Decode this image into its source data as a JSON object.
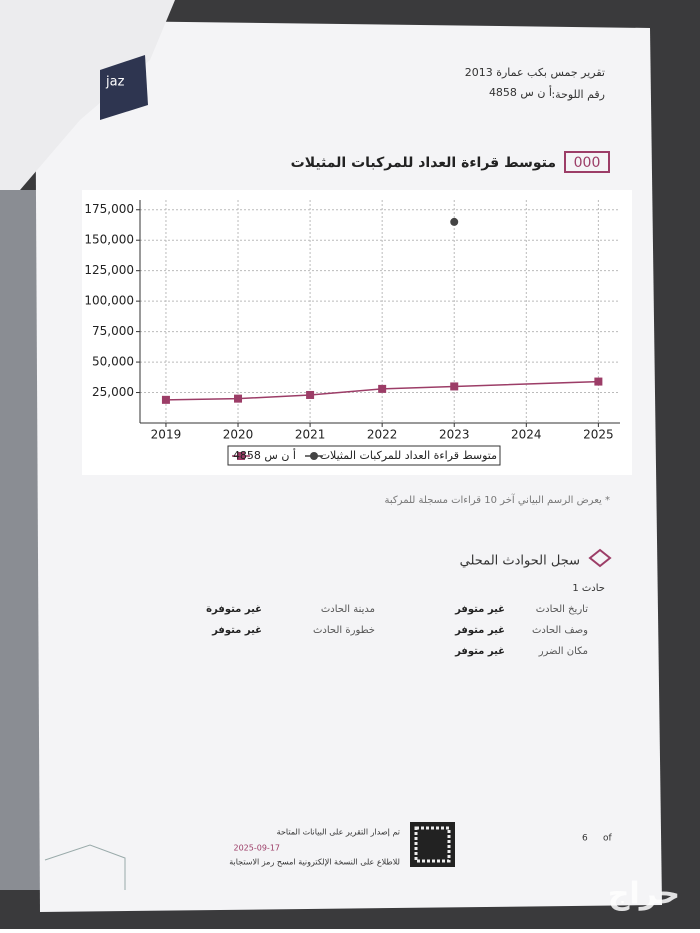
{
  "header": {
    "report_title": "تقرير جمس بكب عمارة 2013",
    "plate_label": "رقم اللوحة:",
    "plate": "أ ن س 4858",
    "logo": "jaz"
  },
  "section": {
    "icon": "000"
  },
  "chart_data": {
    "type": "line",
    "title": "متوسط قراءة العداد للمركبات المثيلات",
    "series": [
      {
        "name": "أ ن س 4858",
        "color": "#9c3d67",
        "marker": "square",
        "x": [
          2019,
          2020,
          2021,
          2022,
          2023,
          2025
        ],
        "values": [
          19000,
          20000,
          23000,
          28000,
          30000,
          34000
        ]
      },
      {
        "name": "متوسط قراءة العداد للمركبات المثيلات",
        "color": "#444444",
        "marker": "circle",
        "x": [
          2023
        ],
        "values": [
          165000
        ]
      }
    ],
    "xlim": [
      2018.64,
      2025.3
    ],
    "xticks": [
      2019,
      2020,
      2021,
      2022,
      2023,
      2024,
      2025
    ],
    "ylim": [
      0,
      183000
    ],
    "yticks": [
      {
        "value": 25000,
        "label": "25,000"
      },
      {
        "value": 50000,
        "label": "50,000"
      },
      {
        "value": 75000,
        "label": "75,000"
      },
      {
        "value": 100000,
        "label": "100,000"
      },
      {
        "value": 125000,
        "label": "125,000"
      },
      {
        "value": 150000,
        "label": "150,000"
      },
      {
        "value": 175000,
        "label": "175,000"
      }
    ],
    "grid": true
  },
  "note": "* يعرض الرسم البياني آخر 10 قراءات مسجلة للمركبة",
  "incidents": {
    "title": "سجل الحوادث المحلي",
    "subtitle": "حادث 1",
    "rows": [
      [
        "تاريخ الحادث",
        "غير متوفر",
        "مدينة الحادث",
        "غير متوفرة"
      ],
      [
        "وصف الحادث",
        "غير متوفر",
        "خطورة الحادث",
        "غير متوفر"
      ],
      [
        "مكان الضرر",
        "غير متوفر"
      ]
    ]
  },
  "footer": {
    "issued": "تم إصدار التقرير على البيانات المتاحة",
    "date": "2025-09-17",
    "scan": "للاطلاع على النسخة الإلكترونية امسح رمز الاستجابة",
    "page": "6",
    "of": "of"
  },
  "watermark": "حراج"
}
